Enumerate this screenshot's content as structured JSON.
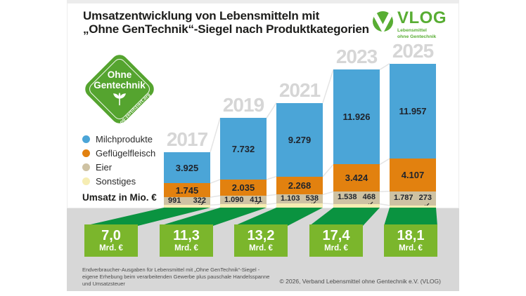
{
  "header": {
    "title_line1": "Umsatzentwicklung von Lebensmitteln mit",
    "title_line2": "„Ohne GenTechnik“-Siegel nach Produktkategorien"
  },
  "vlog_logo": {
    "name": "VLOG",
    "subtitle_line1": "Lebensmittel",
    "subtitle_line2": "ohne Gentechnik",
    "color": "#58ad33"
  },
  "seal": {
    "line1": "Ohne",
    "line2": "Gentechnik",
    "url": "og-zertifiziert.org",
    "color": "#55a42f"
  },
  "chart_data": {
    "type": "bar",
    "stacked": true,
    "title": "Umsatzentwicklung von Lebensmitteln mit „Ohne GenTechnik“-Siegel nach Produktkategorien",
    "unit_label": "Umsatz in Mio. €",
    "categories": [
      "2017",
      "2019",
      "2021",
      "2023",
      "2025"
    ],
    "series": [
      {
        "name": "Milchprodukte",
        "color": "#4ba5d7",
        "values": [
          3925,
          7732,
          9279,
          11926,
          11957
        ],
        "labels": [
          "3.925",
          "7.732",
          "9.279",
          "11.926",
          "11.957"
        ]
      },
      {
        "name": "Geflügelfleisch",
        "color": "#e2810f",
        "values": [
          1745,
          2035,
          2268,
          3424,
          4107
        ],
        "labels": [
          "1.745",
          "2.035",
          "2.268",
          "3.424",
          "4.107"
        ]
      },
      {
        "name": "Eier",
        "color": "#cec2a3",
        "values": [
          991,
          1090,
          1103,
          1538,
          1787
        ],
        "labels": [
          "991",
          "1.090",
          "1.103",
          "1.538",
          "1.787"
        ]
      },
      {
        "name": "Sonstiges",
        "color": "#f6edb3",
        "values": [
          322,
          411,
          538,
          468,
          273
        ],
        "labels": [
          "322",
          "411",
          "538",
          "468",
          "273"
        ]
      }
    ],
    "totals": {
      "unit": "Mrd. €",
      "display": [
        "7,0",
        "11,3",
        "13,2",
        "17,4",
        "18,1"
      ],
      "values": [
        7.0,
        11.3,
        13.2,
        17.4,
        18.1
      ]
    },
    "style_colors": {
      "ribbon_green": "#0a9340",
      "box_green": "#7bb62c",
      "year_label_gray": "#d6d6d6",
      "band_gray": "#d7d7d7"
    }
  },
  "footer": {
    "note_line1": "Endverbraucher-Ausgaben für Lebensmittel mit „Ohne GenTechnik“-Siegel -",
    "note_line2": "eigene Erhebung beim verarbeitenden Gewerbe plus pauschale Handelsspanne",
    "note_line3": "und Umsatzsteuer",
    "copyright": "© 2026, Verband Lebensmittel ohne Gentechnik e.V. (VLOG)"
  }
}
